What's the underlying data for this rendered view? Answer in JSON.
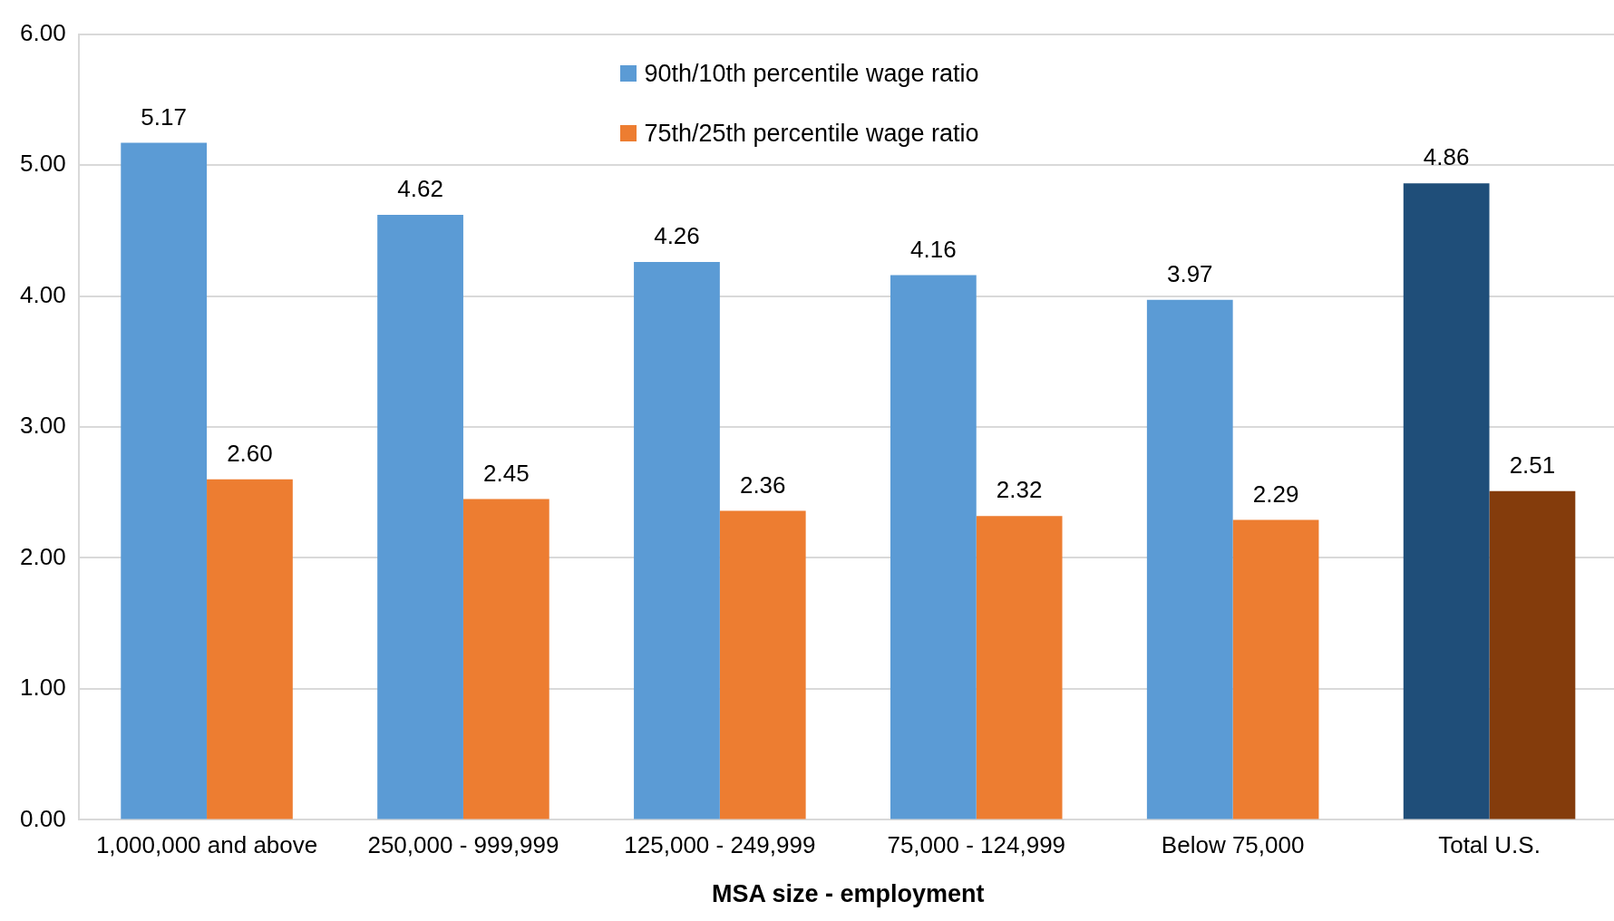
{
  "chart_data": {
    "type": "bar",
    "xlabel": "MSA size - employment",
    "categories": [
      "1,000,000 and above",
      "250,000 - 999,999",
      "125,000 - 249,999",
      "75,000 - 124,999",
      "Below 75,000",
      "Total U.S."
    ],
    "series": [
      {
        "name": "90th/10th percentile wage ratio",
        "color": "#5b9bd5",
        "colors": [
          "#5b9bd5",
          "#5b9bd5",
          "#5b9bd5",
          "#5b9bd5",
          "#5b9bd5",
          "#1f4e79"
        ],
        "values": [
          5.17,
          4.62,
          4.26,
          4.16,
          3.97,
          4.86
        ],
        "value_labels": [
          "5.17",
          "4.62",
          "4.26",
          "4.16",
          "3.97",
          "4.86"
        ]
      },
      {
        "name": "75th/25th percentile wage ratio",
        "color": "#ed7d31",
        "colors": [
          "#ed7d31",
          "#ed7d31",
          "#ed7d31",
          "#ed7d31",
          "#ed7d31",
          "#843c0c"
        ],
        "values": [
          2.6,
          2.45,
          2.36,
          2.32,
          2.29,
          2.51
        ],
        "value_labels": [
          "2.60",
          "2.45",
          "2.36",
          "2.32",
          "2.29",
          "2.51"
        ]
      }
    ],
    "ylim": [
      0,
      6
    ],
    "yticks": [
      {
        "value": 0,
        "label": "0.00"
      },
      {
        "value": 1,
        "label": "1.00"
      },
      {
        "value": 2,
        "label": "2.00"
      },
      {
        "value": 3,
        "label": "3.00"
      },
      {
        "value": 4,
        "label": "4.00"
      },
      {
        "value": 5,
        "label": "5.00"
      },
      {
        "value": 6,
        "label": "6.00"
      }
    ],
    "grid": "y",
    "legend": "top"
  }
}
